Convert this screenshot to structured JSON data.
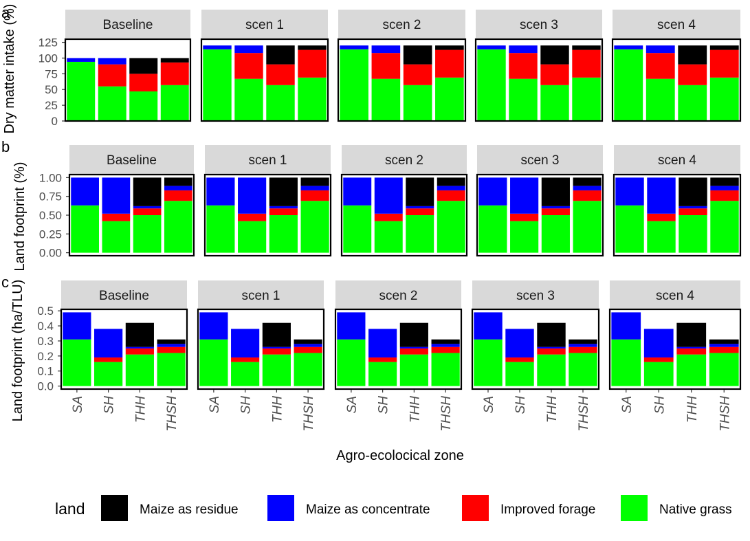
{
  "xlabel": "Agro-ecolocical zone",
  "legend": {
    "title": "land",
    "entries": [
      {
        "name": "Maize as residue",
        "color": "#000000"
      },
      {
        "name": "Maize as concentrate",
        "color": "#0000FF"
      },
      {
        "name": "Improved forage",
        "color": "#FF0000"
      },
      {
        "name": "Native grass",
        "color": "#00FF00"
      }
    ]
  },
  "chart_data": [
    {
      "type": "bar",
      "stacked": true,
      "panel_label": "a",
      "ylabel": "Dry matter intake (%)",
      "ylim": [
        0,
        130
      ],
      "yticks": [
        "0",
        "25",
        "50",
        "75",
        "100",
        "125"
      ],
      "facets": [
        "Baseline",
        "scen 1",
        "scen 2",
        "scen 3",
        "scen 4"
      ],
      "categories": [
        "SA",
        "SH",
        "THH",
        "THSH"
      ],
      "stack_order": [
        "Native grass",
        "Improved forage",
        "Maize as concentrate",
        "Maize as residue"
      ],
      "values": {
        "Baseline": {
          "SA": [
            94,
            0,
            6,
            0
          ],
          "SH": [
            55,
            35,
            10,
            0
          ],
          "THH": [
            47,
            28,
            0,
            25
          ],
          "THSH": [
            57,
            36,
            0,
            7
          ]
        },
        "scen 1": {
          "SA": [
            114,
            0,
            6,
            0
          ],
          "SH": [
            67,
            41,
            12,
            0
          ],
          "THH": [
            57,
            33,
            0,
            30
          ],
          "THSH": [
            69,
            44,
            0,
            7
          ]
        },
        "scen 2": {
          "SA": [
            114,
            0,
            6,
            0
          ],
          "SH": [
            67,
            41,
            12,
            0
          ],
          "THH": [
            57,
            33,
            0,
            30
          ],
          "THSH": [
            69,
            44,
            0,
            7
          ]
        },
        "scen 3": {
          "SA": [
            114,
            0,
            6,
            0
          ],
          "SH": [
            67,
            41,
            12,
            0
          ],
          "THH": [
            57,
            33,
            0,
            30
          ],
          "THSH": [
            69,
            44,
            0,
            7
          ]
        },
        "scen 4": {
          "SA": [
            114,
            0,
            6,
            0
          ],
          "SH": [
            67,
            41,
            12,
            0
          ],
          "THH": [
            57,
            33,
            0,
            30
          ],
          "THSH": [
            69,
            44,
            0,
            7
          ]
        }
      }
    },
    {
      "type": "bar",
      "stacked": true,
      "panel_label": "b",
      "ylabel": "Land footprint (%)",
      "ylim": [
        -0.04,
        1.04
      ],
      "yticks": [
        "0.00",
        "0.25",
        "0.50",
        "0.75",
        "1.00"
      ],
      "facets": [
        "Baseline",
        "scen 1",
        "scen 2",
        "scen 3",
        "scen 4"
      ],
      "categories": [
        "SA",
        "SH",
        "THH",
        "THSH"
      ],
      "stack_order": [
        "Native grass",
        "Improved forage",
        "Maize as concentrate",
        "Maize as residue"
      ],
      "values": {
        "Baseline": {
          "SA": [
            0.63,
            0,
            0.37,
            0
          ],
          "SH": [
            0.42,
            0.1,
            0.48,
            0
          ],
          "THH": [
            0.5,
            0.09,
            0.03,
            0.38
          ],
          "THSH": [
            0.69,
            0.14,
            0.06,
            0.11
          ]
        },
        "scen 1": {
          "SA": [
            0.63,
            0,
            0.37,
            0
          ],
          "SH": [
            0.42,
            0.1,
            0.48,
            0
          ],
          "THH": [
            0.5,
            0.09,
            0.03,
            0.38
          ],
          "THSH": [
            0.69,
            0.14,
            0.06,
            0.11
          ]
        },
        "scen 2": {
          "SA": [
            0.63,
            0,
            0.37,
            0
          ],
          "SH": [
            0.42,
            0.1,
            0.48,
            0
          ],
          "THH": [
            0.5,
            0.09,
            0.03,
            0.38
          ],
          "THSH": [
            0.69,
            0.14,
            0.06,
            0.11
          ]
        },
        "scen 3": {
          "SA": [
            0.63,
            0,
            0.37,
            0
          ],
          "SH": [
            0.42,
            0.1,
            0.48,
            0
          ],
          "THH": [
            0.5,
            0.09,
            0.03,
            0.38
          ],
          "THSH": [
            0.69,
            0.14,
            0.06,
            0.11
          ]
        },
        "scen 4": {
          "SA": [
            0.63,
            0,
            0.37,
            0
          ],
          "SH": [
            0.42,
            0.1,
            0.48,
            0
          ],
          "THH": [
            0.5,
            0.09,
            0.03,
            0.38
          ],
          "THSH": [
            0.69,
            0.14,
            0.06,
            0.11
          ]
        }
      }
    },
    {
      "type": "bar",
      "stacked": true,
      "panel_label": "c",
      "ylabel": "Land footprint (ha/TLU)",
      "ylim": [
        -0.02,
        0.51
      ],
      "yticks": [
        "0.0",
        "0.1",
        "0.2",
        "0.3",
        "0.4",
        "0.5"
      ],
      "facets": [
        "Baseline",
        "scen 1",
        "scen 2",
        "scen 3",
        "scen 4"
      ],
      "categories": [
        "SA",
        "SH",
        "THH",
        "THSH"
      ],
      "stack_order": [
        "Native grass",
        "Improved forage",
        "Maize as concentrate",
        "Maize as residue"
      ],
      "values": {
        "Baseline": {
          "SA": [
            0.31,
            0,
            0.18,
            0
          ],
          "SH": [
            0.16,
            0.03,
            0.19,
            0
          ],
          "THH": [
            0.21,
            0.04,
            0.01,
            0.16
          ],
          "THSH": [
            0.22,
            0.04,
            0.02,
            0.03
          ]
        },
        "scen 1": {
          "SA": [
            0.31,
            0,
            0.18,
            0
          ],
          "SH": [
            0.16,
            0.03,
            0.19,
            0
          ],
          "THH": [
            0.21,
            0.04,
            0.01,
            0.16
          ],
          "THSH": [
            0.22,
            0.04,
            0.02,
            0.03
          ]
        },
        "scen 2": {
          "SA": [
            0.31,
            0,
            0.18,
            0
          ],
          "SH": [
            0.16,
            0.03,
            0.19,
            0
          ],
          "THH": [
            0.21,
            0.04,
            0.01,
            0.16
          ],
          "THSH": [
            0.22,
            0.04,
            0.02,
            0.03
          ]
        },
        "scen 3": {
          "SA": [
            0.31,
            0,
            0.18,
            0
          ],
          "SH": [
            0.16,
            0.03,
            0.19,
            0
          ],
          "THH": [
            0.21,
            0.04,
            0.01,
            0.16
          ],
          "THSH": [
            0.22,
            0.04,
            0.02,
            0.03
          ]
        },
        "scen 4": {
          "SA": [
            0.31,
            0,
            0.18,
            0
          ],
          "SH": [
            0.16,
            0.03,
            0.19,
            0
          ],
          "THH": [
            0.21,
            0.04,
            0.01,
            0.16
          ],
          "THSH": [
            0.22,
            0.04,
            0.02,
            0.03
          ]
        }
      }
    }
  ]
}
